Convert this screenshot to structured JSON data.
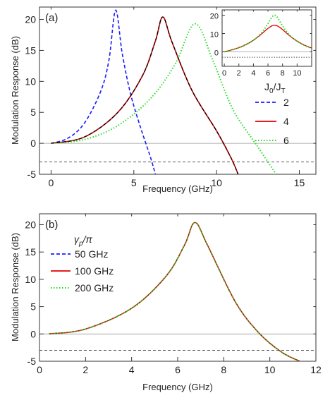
{
  "colors": {
    "blue": "#1a1aff",
    "red": "#e00000",
    "green": "#22dd22",
    "black": "#000000",
    "zero_line": "#9a9a9a",
    "threshold_line": "#555555"
  },
  "chart_data": [
    {
      "panel": "(a)",
      "type": "line",
      "xlabel": "Frequency (GHz)",
      "ylabel": "Modulation Response (dB)",
      "xlim": [
        -0.7,
        16.0
      ],
      "ylim": [
        -5,
        22
      ],
      "xticks": [
        0,
        5,
        10,
        15
      ],
      "yticks": [
        -5,
        0,
        5,
        10,
        15,
        20
      ],
      "grid": false,
      "legend": {
        "title": "J0/JT",
        "placement": "right"
      },
      "reference_lines": [
        {
          "y": 0,
          "style": "solid"
        },
        {
          "y": -3,
          "style": "dashed"
        }
      ],
      "series": [
        {
          "name": "2",
          "color": "blue",
          "style": "dashed",
          "peak_freq": 3.9,
          "peak_db": 21.5,
          "points": [
            [
              0,
              0
            ],
            [
              1,
              0.8
            ],
            [
              2,
              3.2
            ],
            [
              3,
              8.4
            ],
            [
              3.5,
              13.5
            ],
            [
              3.9,
              21.5
            ],
            [
              4.3,
              14.5
            ],
            [
              4.8,
              8.0
            ],
            [
              5.4,
              2.6
            ],
            [
              6.0,
              -2.2
            ],
            [
              6.3,
              -5
            ]
          ]
        },
        {
          "name": "4",
          "color": "red",
          "style": "solid",
          "peak_freq": 6.75,
          "peak_db": 20.4,
          "points": [
            [
              0,
              0
            ],
            [
              2,
              1.0
            ],
            [
              4,
              4.9
            ],
            [
              5.5,
              10.8
            ],
            [
              6.3,
              16.5
            ],
            [
              6.75,
              20.4
            ],
            [
              7.3,
              16.4
            ],
            [
              8.5,
              8.6
            ],
            [
              10,
              2.0
            ],
            [
              10.9,
              -2.5
            ],
            [
              11.3,
              -5
            ]
          ]
        },
        {
          "name": "6",
          "color": "green",
          "style": "dotted",
          "peak_freq": 8.7,
          "peak_db": 19.3,
          "points": [
            [
              0,
              0
            ],
            [
              2,
              0.6
            ],
            [
              4,
              2.8
            ],
            [
              6,
              7.2
            ],
            [
              7.5,
              12.8
            ],
            [
              8.7,
              19.3
            ],
            [
              9.8,
              13.2
            ],
            [
              11,
              5.4
            ],
            [
              12.5,
              -0.6
            ],
            [
              13.6,
              -5
            ]
          ]
        },
        {
          "name": "",
          "color": "black",
          "style": "dashed",
          "note": "overlays the red J0/JT = 4 curve",
          "points": [
            [
              0,
              0
            ],
            [
              2,
              1.0
            ],
            [
              4,
              4.9
            ],
            [
              5.5,
              10.8
            ],
            [
              6.3,
              16.5
            ],
            [
              6.75,
              20.4
            ],
            [
              7.3,
              16.4
            ],
            [
              8.5,
              8.6
            ],
            [
              10,
              2.0
            ],
            [
              10.9,
              -2.5
            ],
            [
              11.3,
              -5
            ]
          ]
        }
      ],
      "legend_entries": [
        "2",
        "4",
        "6"
      ],
      "inset": {
        "xlim": [
          -0.3,
          12.0
        ],
        "ylim": [
          -8,
          23
        ],
        "xticks": [
          0,
          2,
          4,
          6,
          8,
          10
        ],
        "yticks": [
          0,
          10,
          20
        ],
        "reference_lines": [
          {
            "y": 0,
            "style": "solid"
          },
          {
            "y": -3,
            "style": "dotted"
          }
        ],
        "series": [
          {
            "color": "red",
            "style": "solid",
            "peak_freq": 6.9,
            "peak_db": 14.5
          },
          {
            "color": "green",
            "style": "dotted",
            "peak_freq": 6.9,
            "peak_db": 20.0
          }
        ]
      }
    },
    {
      "panel": "(b)",
      "type": "line",
      "xlabel": "Frequency (GHz)",
      "ylabel": "Modulation Response (dB)",
      "xlim": [
        0,
        12
      ],
      "ylim": [
        -5,
        22
      ],
      "xticks": [
        0,
        2,
        4,
        6,
        8,
        10,
        12
      ],
      "yticks": [
        -5,
        0,
        5,
        10,
        15,
        20
      ],
      "grid": false,
      "legend": {
        "title": "γp/π",
        "placement": "top-left"
      },
      "reference_lines": [
        {
          "y": 0,
          "style": "solid"
        },
        {
          "y": -3,
          "style": "dashed"
        }
      ],
      "legend_entries": [
        "50 GHz",
        "100 GHz",
        "200 GHz"
      ],
      "series_colors": [
        "blue",
        "red",
        "green"
      ],
      "series_styles": [
        "dashed",
        "solid",
        "dotted"
      ],
      "note": "all three curves coincide",
      "peak_freq": 6.75,
      "peak_db": 20.4,
      "points": [
        [
          0.4,
          0
        ],
        [
          2,
          0.9
        ],
        [
          4,
          4.7
        ],
        [
          5.5,
          10.6
        ],
        [
          6.3,
          16.3
        ],
        [
          6.75,
          20.4
        ],
        [
          7.3,
          16.2
        ],
        [
          8.5,
          5.9
        ],
        [
          9.5,
          0.3
        ],
        [
          10.5,
          -3.3
        ],
        [
          11.3,
          -5
        ]
      ]
    }
  ]
}
